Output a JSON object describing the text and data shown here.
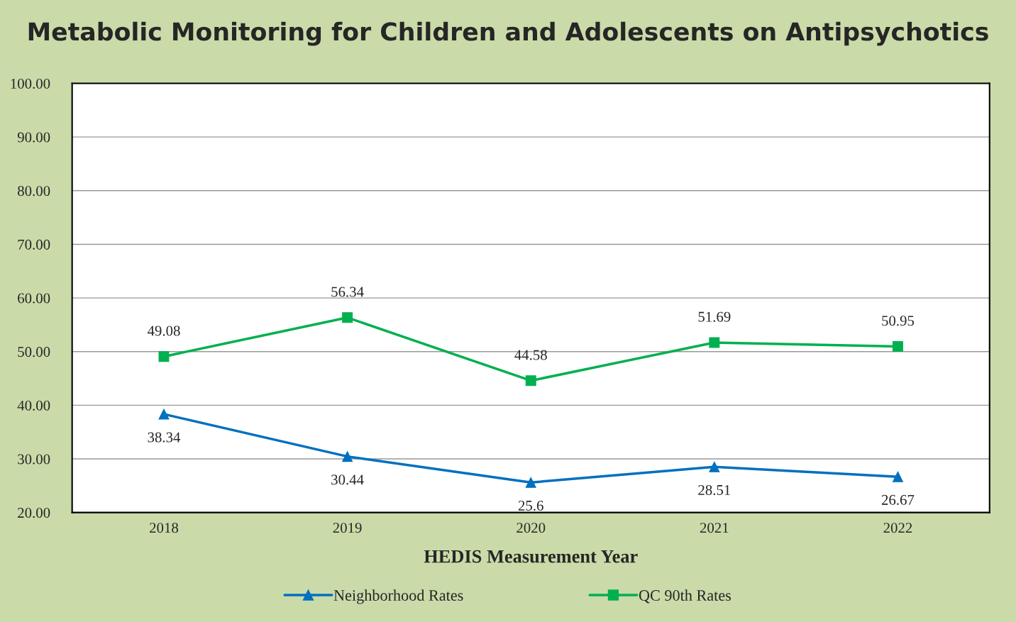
{
  "chart_data": {
    "type": "line",
    "title": "Metabolic Monitoring for Children and Adolescents on Antipsychotics",
    "xlabel": "HEDIS Measurement Year",
    "categories": [
      "2018",
      "2019",
      "2020",
      "2021",
      "2022"
    ],
    "series": [
      {
        "name": "Neighborhood Rates",
        "color": "#0070c0",
        "marker": "triangle",
        "values": [
          38.34,
          30.44,
          25.6,
          28.51,
          26.67
        ]
      },
      {
        "name": "QC 90th Rates",
        "color": "#00b050",
        "marker": "square",
        "values": [
          49.08,
          56.34,
          44.58,
          51.69,
          50.95
        ]
      }
    ],
    "ylim": [
      20,
      100
    ],
    "yticks": [
      {
        "value": 20,
        "label": "20.00"
      },
      {
        "value": 30,
        "label": "30.00"
      },
      {
        "value": 40,
        "label": "40.00"
      },
      {
        "value": 50,
        "label": "50.00"
      },
      {
        "value": 60,
        "label": "60.00"
      },
      {
        "value": 70,
        "label": "70.00"
      },
      {
        "value": 80,
        "label": "80.00"
      },
      {
        "value": 90,
        "label": "90.00"
      },
      {
        "value": 100,
        "label": "100.00"
      }
    ],
    "grid": "y",
    "legend": "bottom",
    "data_labels": true,
    "line_style": "solid"
  }
}
